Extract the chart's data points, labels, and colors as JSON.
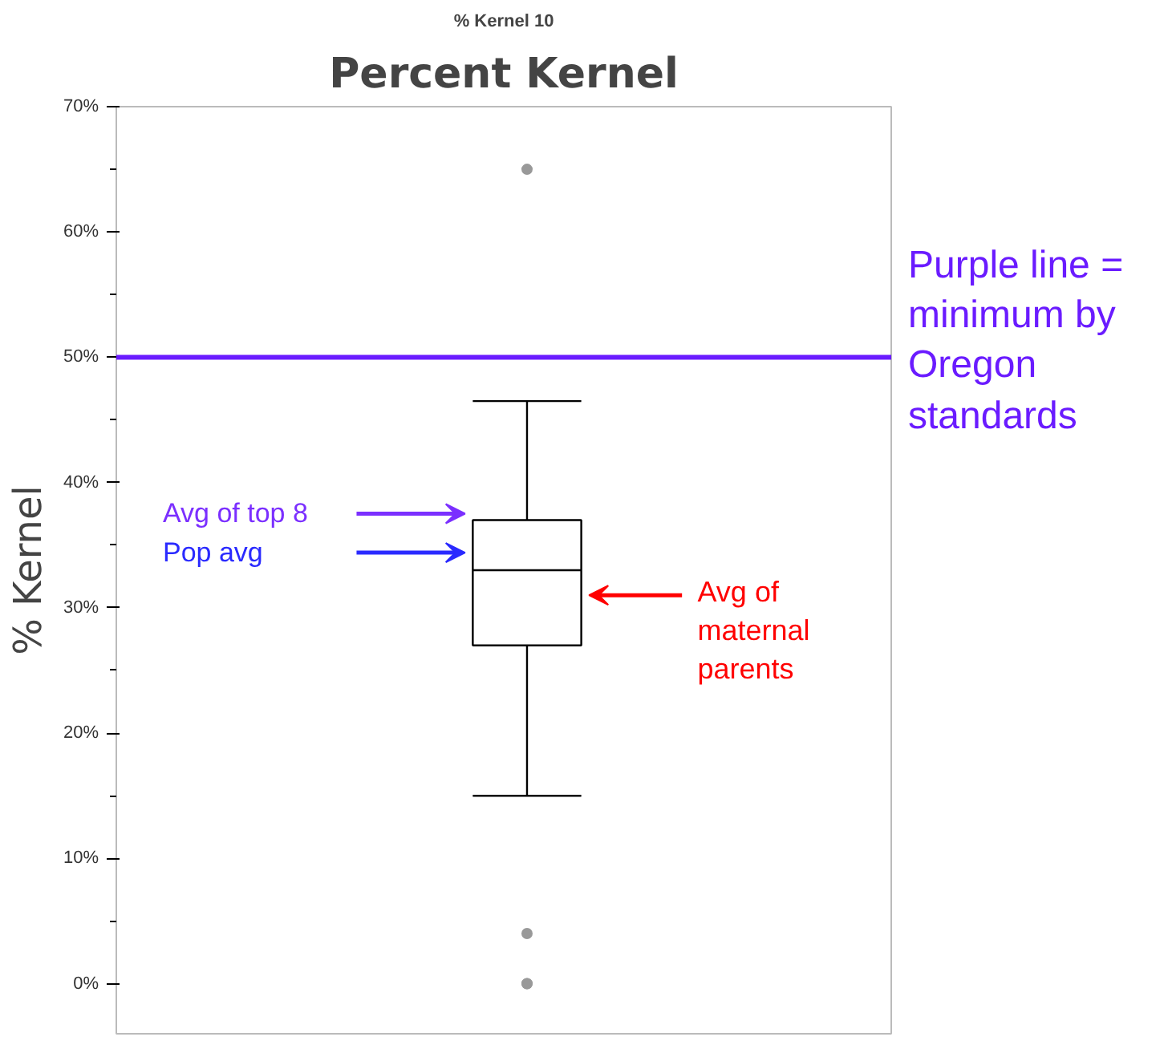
{
  "chart_data": {
    "type": "box",
    "title": "Percent Kernel",
    "subtitle": "% Kernel 10",
    "ylabel": "% Kernel",
    "categories": [
      null
    ],
    "boxes": [
      {
        "low": 15,
        "q1": 27,
        "median": 33,
        "q3": 37,
        "high": 46.5,
        "outliers": [
          65,
          4,
          0,
          0
        ]
      }
    ],
    "ylim": [
      -4,
      70
    ],
    "yticks": [
      {
        "value": 0,
        "label": "0%"
      },
      {
        "value": 10,
        "label": "10%"
      },
      {
        "value": 20,
        "label": "20%"
      },
      {
        "value": 30,
        "label": "30%"
      },
      {
        "value": 40,
        "label": "40%"
      },
      {
        "value": 50,
        "label": "50%"
      },
      {
        "value": 60,
        "label": "60%"
      },
      {
        "value": 70,
        "label": "70%"
      }
    ],
    "ref_lines": [
      {
        "axis": "y",
        "value": 50,
        "label": "Purple line = minimum by Oregon standards",
        "color": "#6a1bff"
      }
    ],
    "annotations": [
      "Avg of top 8",
      "Pop avg",
      "Avg of maternal parents"
    ],
    "grid": false
  }
}
